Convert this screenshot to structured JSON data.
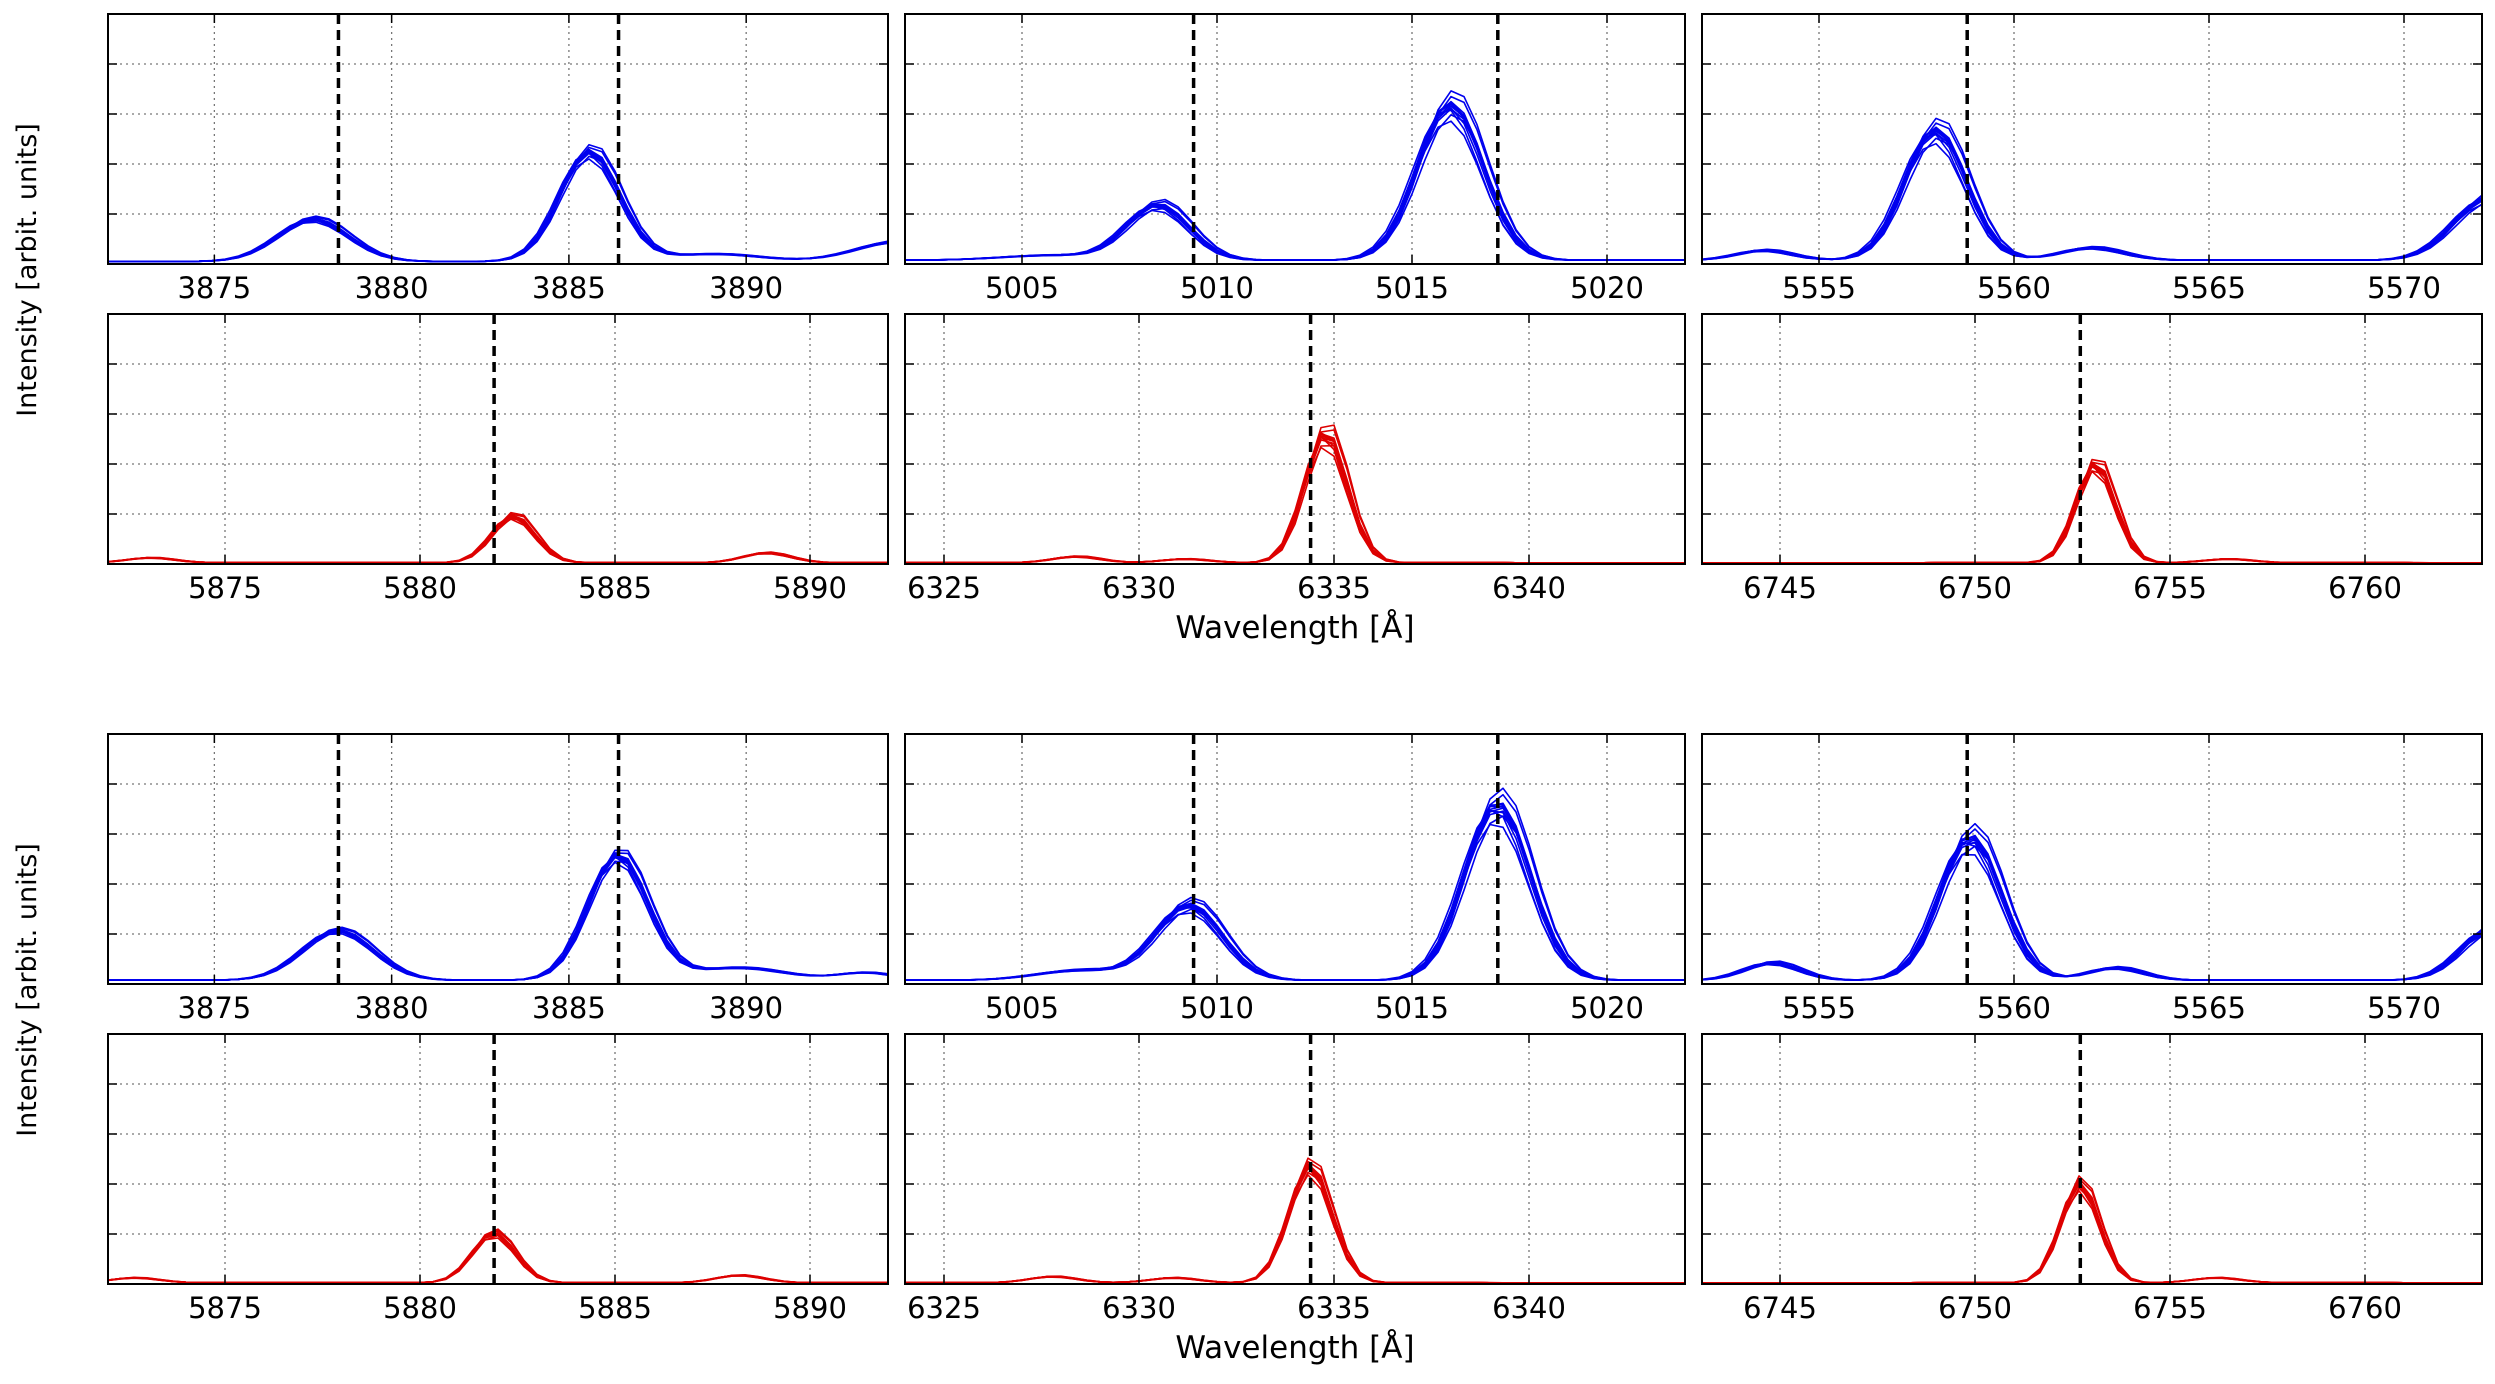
{
  "figure": {
    "ylabel": "Intensity [arbit. units]",
    "xlabel": "Wavelength [Å]",
    "colors": {
      "blue": "#0000ee",
      "red": "#dd0000",
      "guide": "#000000",
      "grid": "#777777"
    }
  },
  "chart_data": [
    {
      "type": "line",
      "group": "top",
      "row": "blue",
      "color": "#0000ee",
      "xlim": [
        3872,
        3894
      ],
      "xticks": [
        3875,
        3880,
        3885,
        3890
      ],
      "ylim": [
        0,
        1
      ],
      "yticks": [
        0.2,
        0.4,
        0.6,
        0.8
      ],
      "grid": true,
      "markers": [
        3878.5,
        3886.4
      ],
      "peaks": [
        {
          "x": 3877.8,
          "h": 0.17,
          "w": 1.0
        },
        {
          "x": 3885.6,
          "h": 0.44,
          "w": 0.85
        },
        {
          "x": 3889.1,
          "h": 0.03,
          "w": 1.3
        },
        {
          "x": 3894.3,
          "h": 0.08,
          "w": 1.2
        }
      ],
      "baseline": 0.01,
      "spread": 0.07,
      "shift": 0.12
    },
    {
      "type": "line",
      "group": "top",
      "row": "blue",
      "color": "#0000ee",
      "xlim": [
        5002,
        5022
      ],
      "xticks": [
        5005,
        5010,
        5015,
        5020
      ],
      "ylim": [
        0,
        1
      ],
      "yticks": [
        0.2,
        0.4,
        0.6,
        0.8
      ],
      "grid": true,
      "markers": [
        5009.4,
        5017.2
      ],
      "peaks": [
        {
          "x": 5005.8,
          "h": 0.02,
          "w": 1.3
        },
        {
          "x": 5008.5,
          "h": 0.22,
          "w": 0.8
        },
        {
          "x": 5016.0,
          "h": 0.62,
          "w": 0.85
        }
      ],
      "baseline": 0.015,
      "spread": 0.1,
      "shift": 0.15
    },
    {
      "type": "line",
      "group": "top",
      "row": "blue",
      "color": "#0000ee",
      "xlim": [
        5552,
        5572
      ],
      "xticks": [
        5555,
        5560,
        5565,
        5570
      ],
      "ylim": [
        0,
        1
      ],
      "yticks": [
        0.2,
        0.4,
        0.6,
        0.8
      ],
      "grid": true,
      "markers": [
        5558.8
      ],
      "peaks": [
        {
          "x": 5553.6,
          "h": 0.04,
          "w": 0.7
        },
        {
          "x": 5558.0,
          "h": 0.52,
          "w": 0.8
        },
        {
          "x": 5562.0,
          "h": 0.05,
          "w": 0.8
        },
        {
          "x": 5572.2,
          "h": 0.25,
          "w": 0.9
        }
      ],
      "baseline": 0.015,
      "spread": 0.1,
      "shift": 0.15
    },
    {
      "type": "line",
      "group": "top",
      "row": "red",
      "color": "#dd0000",
      "xlim": [
        5872,
        5892
      ],
      "xticks": [
        5875,
        5880,
        5885,
        5890
      ],
      "ylim": [
        0,
        1
      ],
      "yticks": [
        0.2,
        0.4,
        0.6,
        0.8
      ],
      "grid": true,
      "markers": [
        5881.9
      ],
      "peaks": [
        {
          "x": 5873.1,
          "h": 0.02,
          "w": 0.6
        },
        {
          "x": 5882.4,
          "h": 0.19,
          "w": 0.55
        },
        {
          "x": 5888.9,
          "h": 0.04,
          "w": 0.6
        }
      ],
      "baseline": 0.005,
      "spread": 0.08,
      "shift": 0.08
    },
    {
      "type": "line",
      "group": "top",
      "row": "red",
      "color": "#dd0000",
      "xlim": [
        6324,
        6344
      ],
      "xticks": [
        6325,
        6330,
        6335,
        6340
      ],
      "ylim": [
        0,
        1
      ],
      "yticks": [
        0.2,
        0.4,
        0.6,
        0.8
      ],
      "grid": true,
      "markers": [
        6334.4
      ],
      "peaks": [
        {
          "x": 6328.4,
          "h": 0.025,
          "w": 0.6
        },
        {
          "x": 6331.2,
          "h": 0.015,
          "w": 0.6
        },
        {
          "x": 6334.8,
          "h": 0.52,
          "w": 0.55
        }
      ],
      "baseline": 0.005,
      "spread": 0.1,
      "shift": 0.08
    },
    {
      "type": "line",
      "group": "top",
      "row": "red",
      "color": "#dd0000",
      "xlim": [
        6743,
        6763
      ],
      "xticks": [
        6745,
        6750,
        6755,
        6760
      ],
      "ylim": [
        0,
        1
      ],
      "yticks": [
        0.2,
        0.4,
        0.6,
        0.8
      ],
      "grid": true,
      "markers": [
        6752.7
      ],
      "peaks": [
        {
          "x": 6753.1,
          "h": 0.4,
          "w": 0.5
        },
        {
          "x": 6756.5,
          "h": 0.015,
          "w": 0.6
        }
      ],
      "baseline": 0.005,
      "spread": 0.08,
      "shift": 0.08
    },
    {
      "type": "line",
      "group": "bottom",
      "row": "blue",
      "color": "#0000ee",
      "xlim": [
        3872,
        3894
      ],
      "xticks": [
        3875,
        3880,
        3885,
        3890
      ],
      "ylim": [
        0,
        1
      ],
      "yticks": [
        0.2,
        0.4,
        0.6,
        0.8
      ],
      "grid": true,
      "markers": [
        3878.5,
        3886.4
      ],
      "peaks": [
        {
          "x": 3878.5,
          "h": 0.2,
          "w": 1.0
        },
        {
          "x": 3886.4,
          "h": 0.5,
          "w": 0.85
        },
        {
          "x": 3889.8,
          "h": 0.05,
          "w": 1.3
        },
        {
          "x": 3893.4,
          "h": 0.03,
          "w": 0.8
        }
      ],
      "baseline": 0.015,
      "spread": 0.06,
      "shift": 0.12
    },
    {
      "type": "line",
      "group": "bottom",
      "row": "blue",
      "color": "#0000ee",
      "xlim": [
        5002,
        5022
      ],
      "xticks": [
        5005,
        5010,
        5015,
        5020
      ],
      "ylim": [
        0,
        1
      ],
      "yticks": [
        0.2,
        0.4,
        0.6,
        0.8
      ],
      "grid": true,
      "markers": [
        5009.4,
        5017.2
      ],
      "peaks": [
        {
          "x": 5006.5,
          "h": 0.04,
          "w": 1.1
        },
        {
          "x": 5009.3,
          "h": 0.3,
          "w": 0.85
        },
        {
          "x": 5017.2,
          "h": 0.7,
          "w": 0.85
        }
      ],
      "baseline": 0.015,
      "spread": 0.1,
      "shift": 0.15
    },
    {
      "type": "line",
      "group": "bottom",
      "row": "blue",
      "color": "#0000ee",
      "xlim": [
        5552,
        5572
      ],
      "xticks": [
        5555,
        5560,
        5565,
        5570
      ],
      "ylim": [
        0,
        1
      ],
      "yticks": [
        0.2,
        0.4,
        0.6,
        0.8
      ],
      "grid": true,
      "markers": [
        5558.8
      ],
      "peaks": [
        {
          "x": 5553.8,
          "h": 0.07,
          "w": 0.7
        },
        {
          "x": 5558.9,
          "h": 0.57,
          "w": 0.8
        },
        {
          "x": 5562.6,
          "h": 0.05,
          "w": 0.7
        },
        {
          "x": 5572.3,
          "h": 0.21,
          "w": 0.8
        }
      ],
      "baseline": 0.015,
      "spread": 0.1,
      "shift": 0.15
    },
    {
      "type": "line",
      "group": "bottom",
      "row": "red",
      "color": "#dd0000",
      "xlim": [
        5872,
        5892
      ],
      "xticks": [
        5875,
        5880,
        5885,
        5890
      ],
      "ylim": [
        0,
        1
      ],
      "yticks": [
        0.2,
        0.4,
        0.6,
        0.8
      ],
      "grid": true,
      "markers": [
        5881.9
      ],
      "peaks": [
        {
          "x": 5872.7,
          "h": 0.02,
          "w": 0.6
        },
        {
          "x": 5881.9,
          "h": 0.2,
          "w": 0.55
        },
        {
          "x": 5888.2,
          "h": 0.03,
          "w": 0.6
        }
      ],
      "baseline": 0.005,
      "spread": 0.08,
      "shift": 0.06
    },
    {
      "type": "line",
      "group": "bottom",
      "row": "red",
      "color": "#dd0000",
      "xlim": [
        6324,
        6344
      ],
      "xticks": [
        6325,
        6330,
        6335,
        6340
      ],
      "ylim": [
        0,
        1
      ],
      "yticks": [
        0.2,
        0.4,
        0.6,
        0.8
      ],
      "grid": true,
      "markers": [
        6334.4
      ],
      "peaks": [
        {
          "x": 6327.8,
          "h": 0.025,
          "w": 0.6
        },
        {
          "x": 6330.9,
          "h": 0.02,
          "w": 0.6
        },
        {
          "x": 6334.4,
          "h": 0.47,
          "w": 0.55
        }
      ],
      "baseline": 0.005,
      "spread": 0.08,
      "shift": 0.06
    },
    {
      "type": "line",
      "group": "bottom",
      "row": "red",
      "color": "#dd0000",
      "xlim": [
        6743,
        6763
      ],
      "xticks": [
        6745,
        6750,
        6755,
        6760
      ],
      "ylim": [
        0,
        1
      ],
      "yticks": [
        0.2,
        0.4,
        0.6,
        0.8
      ],
      "grid": true,
      "markers": [
        6752.7
      ],
      "peaks": [
        {
          "x": 6752.7,
          "h": 0.4,
          "w": 0.5
        },
        {
          "x": 6756.2,
          "h": 0.02,
          "w": 0.6
        }
      ],
      "baseline": 0.005,
      "spread": 0.08,
      "shift": 0.06
    }
  ]
}
